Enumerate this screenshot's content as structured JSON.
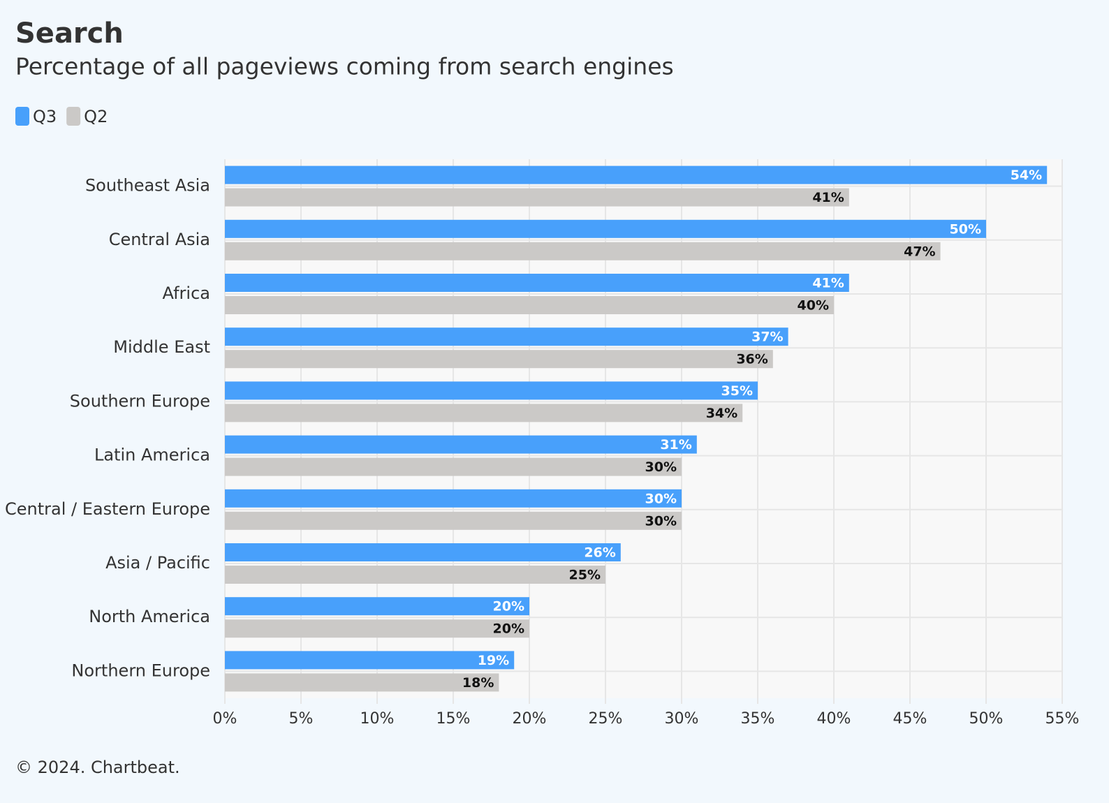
{
  "chart_data": {
    "type": "bar",
    "orientation": "horizontal",
    "title": "Search",
    "subtitle": "Percentage of all pageviews coming from search engines",
    "source": "© 2024. Chartbeat.",
    "categories": [
      "Southeast Asia",
      "Central Asia",
      "Africa",
      "Middle East",
      "Southern Europe",
      "Latin America",
      "Central / Eastern Europe",
      "Asia / Pacific",
      "North America",
      "Northern Europe"
    ],
    "series": [
      {
        "name": "Q3",
        "color": "#48a0fb",
        "values": [
          54,
          50,
          41,
          37,
          35,
          31,
          30,
          26,
          20,
          19
        ],
        "value_labels": [
          "54%",
          "50%",
          "41%",
          "37%",
          "35%",
          "31%",
          "30%",
          "26%",
          "20%",
          "19%"
        ]
      },
      {
        "name": "Q2",
        "color": "#cbc9c7",
        "values": [
          41,
          47,
          40,
          36,
          34,
          30,
          30,
          25,
          20,
          18
        ],
        "value_labels": [
          "41%",
          "47%",
          "40%",
          "36%",
          "34%",
          "30%",
          "30%",
          "25%",
          "20%",
          "18%"
        ]
      }
    ],
    "xlim": [
      0,
      55
    ],
    "xticks": [
      {
        "value": 0,
        "label": "0%"
      },
      {
        "value": 5,
        "label": "5%"
      },
      {
        "value": 10,
        "label": "10%"
      },
      {
        "value": 15,
        "label": "15%"
      },
      {
        "value": 20,
        "label": "20%"
      },
      {
        "value": 25,
        "label": "25%"
      },
      {
        "value": 30,
        "label": "30%"
      },
      {
        "value": 35,
        "label": "35%"
      },
      {
        "value": 40,
        "label": "40%"
      },
      {
        "value": 45,
        "label": "45%"
      },
      {
        "value": 50,
        "label": "50%"
      },
      {
        "value": 55,
        "label": "55%"
      }
    ],
    "grid": true,
    "legend": "top-left"
  }
}
